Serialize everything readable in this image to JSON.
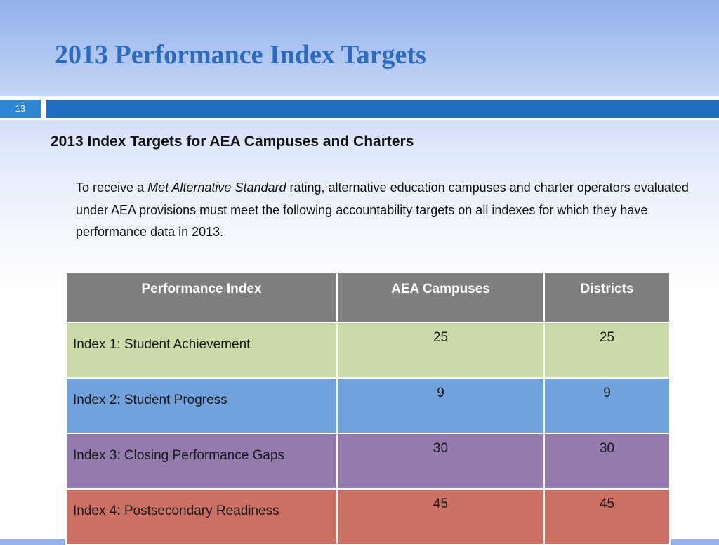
{
  "slide": {
    "title": "2013 Performance Index Targets",
    "number": "13",
    "subtitle": "2013 Index Targets for AEA Campuses and Charters",
    "body_before": "To receive a ",
    "body_emphasis": "Met Alternative Standard",
    "body_after": " rating, alternative education campuses and charter operators evaluated under AEA provisions must meet the following accountability targets on all indexes for which they have performance data in 2013."
  },
  "table": {
    "headers": [
      "Performance Index",
      "AEA Campuses",
      "Districts"
    ],
    "rows": [
      {
        "label": "Index 1: Student Achievement",
        "aea": "25",
        "districts": "25",
        "color": "#c8dba8"
      },
      {
        "label": "Index 2: Student Progress",
        "aea": "9",
        "districts": "9",
        "color": "#72a2dd"
      },
      {
        "label": "Index 3: Closing Performance Gaps",
        "aea": "30",
        "districts": "30",
        "color": "#937bae"
      },
      {
        "label": "Index 4: Postsecondary Readiness",
        "aea": "45",
        "districts": "45",
        "color": "#cd7064"
      }
    ]
  },
  "colors": {
    "title": "#2c6bc4",
    "header_bg": "#7f7f7f",
    "divider_bar": "#1e6fc2",
    "slide_number_bg": "#2f86d3"
  }
}
